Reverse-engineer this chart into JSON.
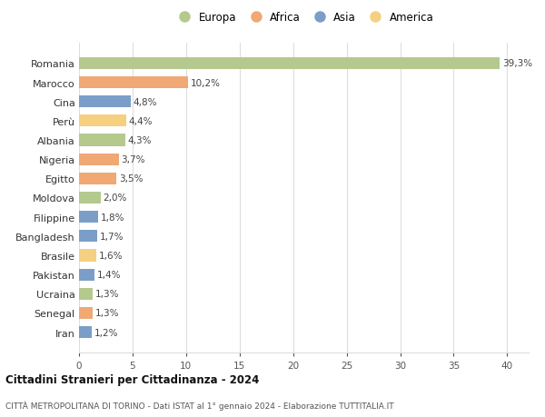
{
  "countries": [
    "Romania",
    "Marocco",
    "Cina",
    "Perù",
    "Albania",
    "Nigeria",
    "Egitto",
    "Moldova",
    "Filippine",
    "Bangladesh",
    "Brasile",
    "Pakistan",
    "Ucraina",
    "Senegal",
    "Iran"
  ],
  "values": [
    39.3,
    10.2,
    4.8,
    4.4,
    4.3,
    3.7,
    3.5,
    2.0,
    1.8,
    1.7,
    1.6,
    1.4,
    1.3,
    1.3,
    1.2
  ],
  "labels": [
    "39,3%",
    "10,2%",
    "4,8%",
    "4,4%",
    "4,3%",
    "3,7%",
    "3,5%",
    "2,0%",
    "1,8%",
    "1,7%",
    "1,6%",
    "1,4%",
    "1,3%",
    "1,3%",
    "1,2%"
  ],
  "colors": [
    "#b5c98e",
    "#f0a875",
    "#7b9ec9",
    "#f5d080",
    "#b5c98e",
    "#f0a875",
    "#f0a875",
    "#b5c98e",
    "#7b9ec9",
    "#7b9ec9",
    "#f5d080",
    "#7b9ec9",
    "#b5c98e",
    "#f0a875",
    "#7b9ec9"
  ],
  "legend_labels": [
    "Europa",
    "Africa",
    "Asia",
    "America"
  ],
  "legend_colors": [
    "#b5c98e",
    "#f0a875",
    "#7b9ec9",
    "#f5d080"
  ],
  "title": "Cittadini Stranieri per Cittadinanza - 2024",
  "subtitle": "CITTÀ METROPOLITANA DI TORINO - Dati ISTAT al 1° gennaio 2024 - Elaborazione TUTTITALIA.IT",
  "xlim": [
    0,
    42
  ],
  "xticks": [
    0,
    5,
    10,
    15,
    20,
    25,
    30,
    35,
    40
  ],
  "bg_color": "#ffffff",
  "grid_color": "#dddddd"
}
